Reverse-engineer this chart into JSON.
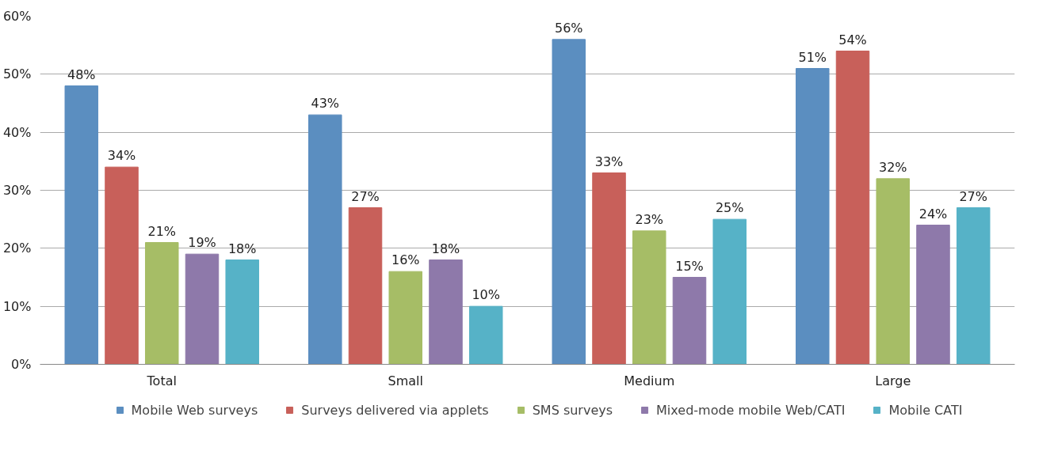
{
  "chart_data": {
    "type": "bar",
    "categories": [
      "Total",
      "Small",
      "Medium",
      "Large"
    ],
    "series": [
      {
        "name": "Mobile Web surveys",
        "color": "#5b8ec0",
        "values": [
          48,
          43,
          56,
          51
        ],
        "value_labels": [
          "48%",
          "43%",
          "56%",
          "51%"
        ]
      },
      {
        "name": "Surveys delivered via applets",
        "color": "#c8605a",
        "values": [
          34,
          27,
          33,
          54
        ],
        "value_labels": [
          "34%",
          "27%",
          "33%",
          "54%"
        ]
      },
      {
        "name": "SMS surveys",
        "color": "#a6bd66",
        "values": [
          21,
          16,
          23,
          32
        ],
        "value_labels": [
          "21%",
          "16%",
          "23%",
          "32%"
        ]
      },
      {
        "name": "Mixed-mode mobile Web/CATI",
        "color": "#8e79aa",
        "values": [
          19,
          18,
          15,
          24
        ],
        "value_labels": [
          "19%",
          "18%",
          "15%",
          "24%"
        ]
      },
      {
        "name": "Mobile CATI",
        "color": "#56b2c7",
        "values": [
          18,
          10,
          25,
          27
        ],
        "value_labels": [
          "18%",
          "10%",
          "25%",
          "27%"
        ]
      }
    ],
    "ylim": [
      0,
      60
    ],
    "yticks": [
      {
        "value": 0,
        "label": "0%"
      },
      {
        "value": 10,
        "label": "10%"
      },
      {
        "value": 20,
        "label": "20%"
      },
      {
        "value": 30,
        "label": "30%"
      },
      {
        "value": 40,
        "label": "40%"
      },
      {
        "value": 50,
        "label": "50%"
      },
      {
        "value": 60,
        "label": "60%"
      }
    ],
    "grid": "y",
    "legend": "bottom"
  }
}
